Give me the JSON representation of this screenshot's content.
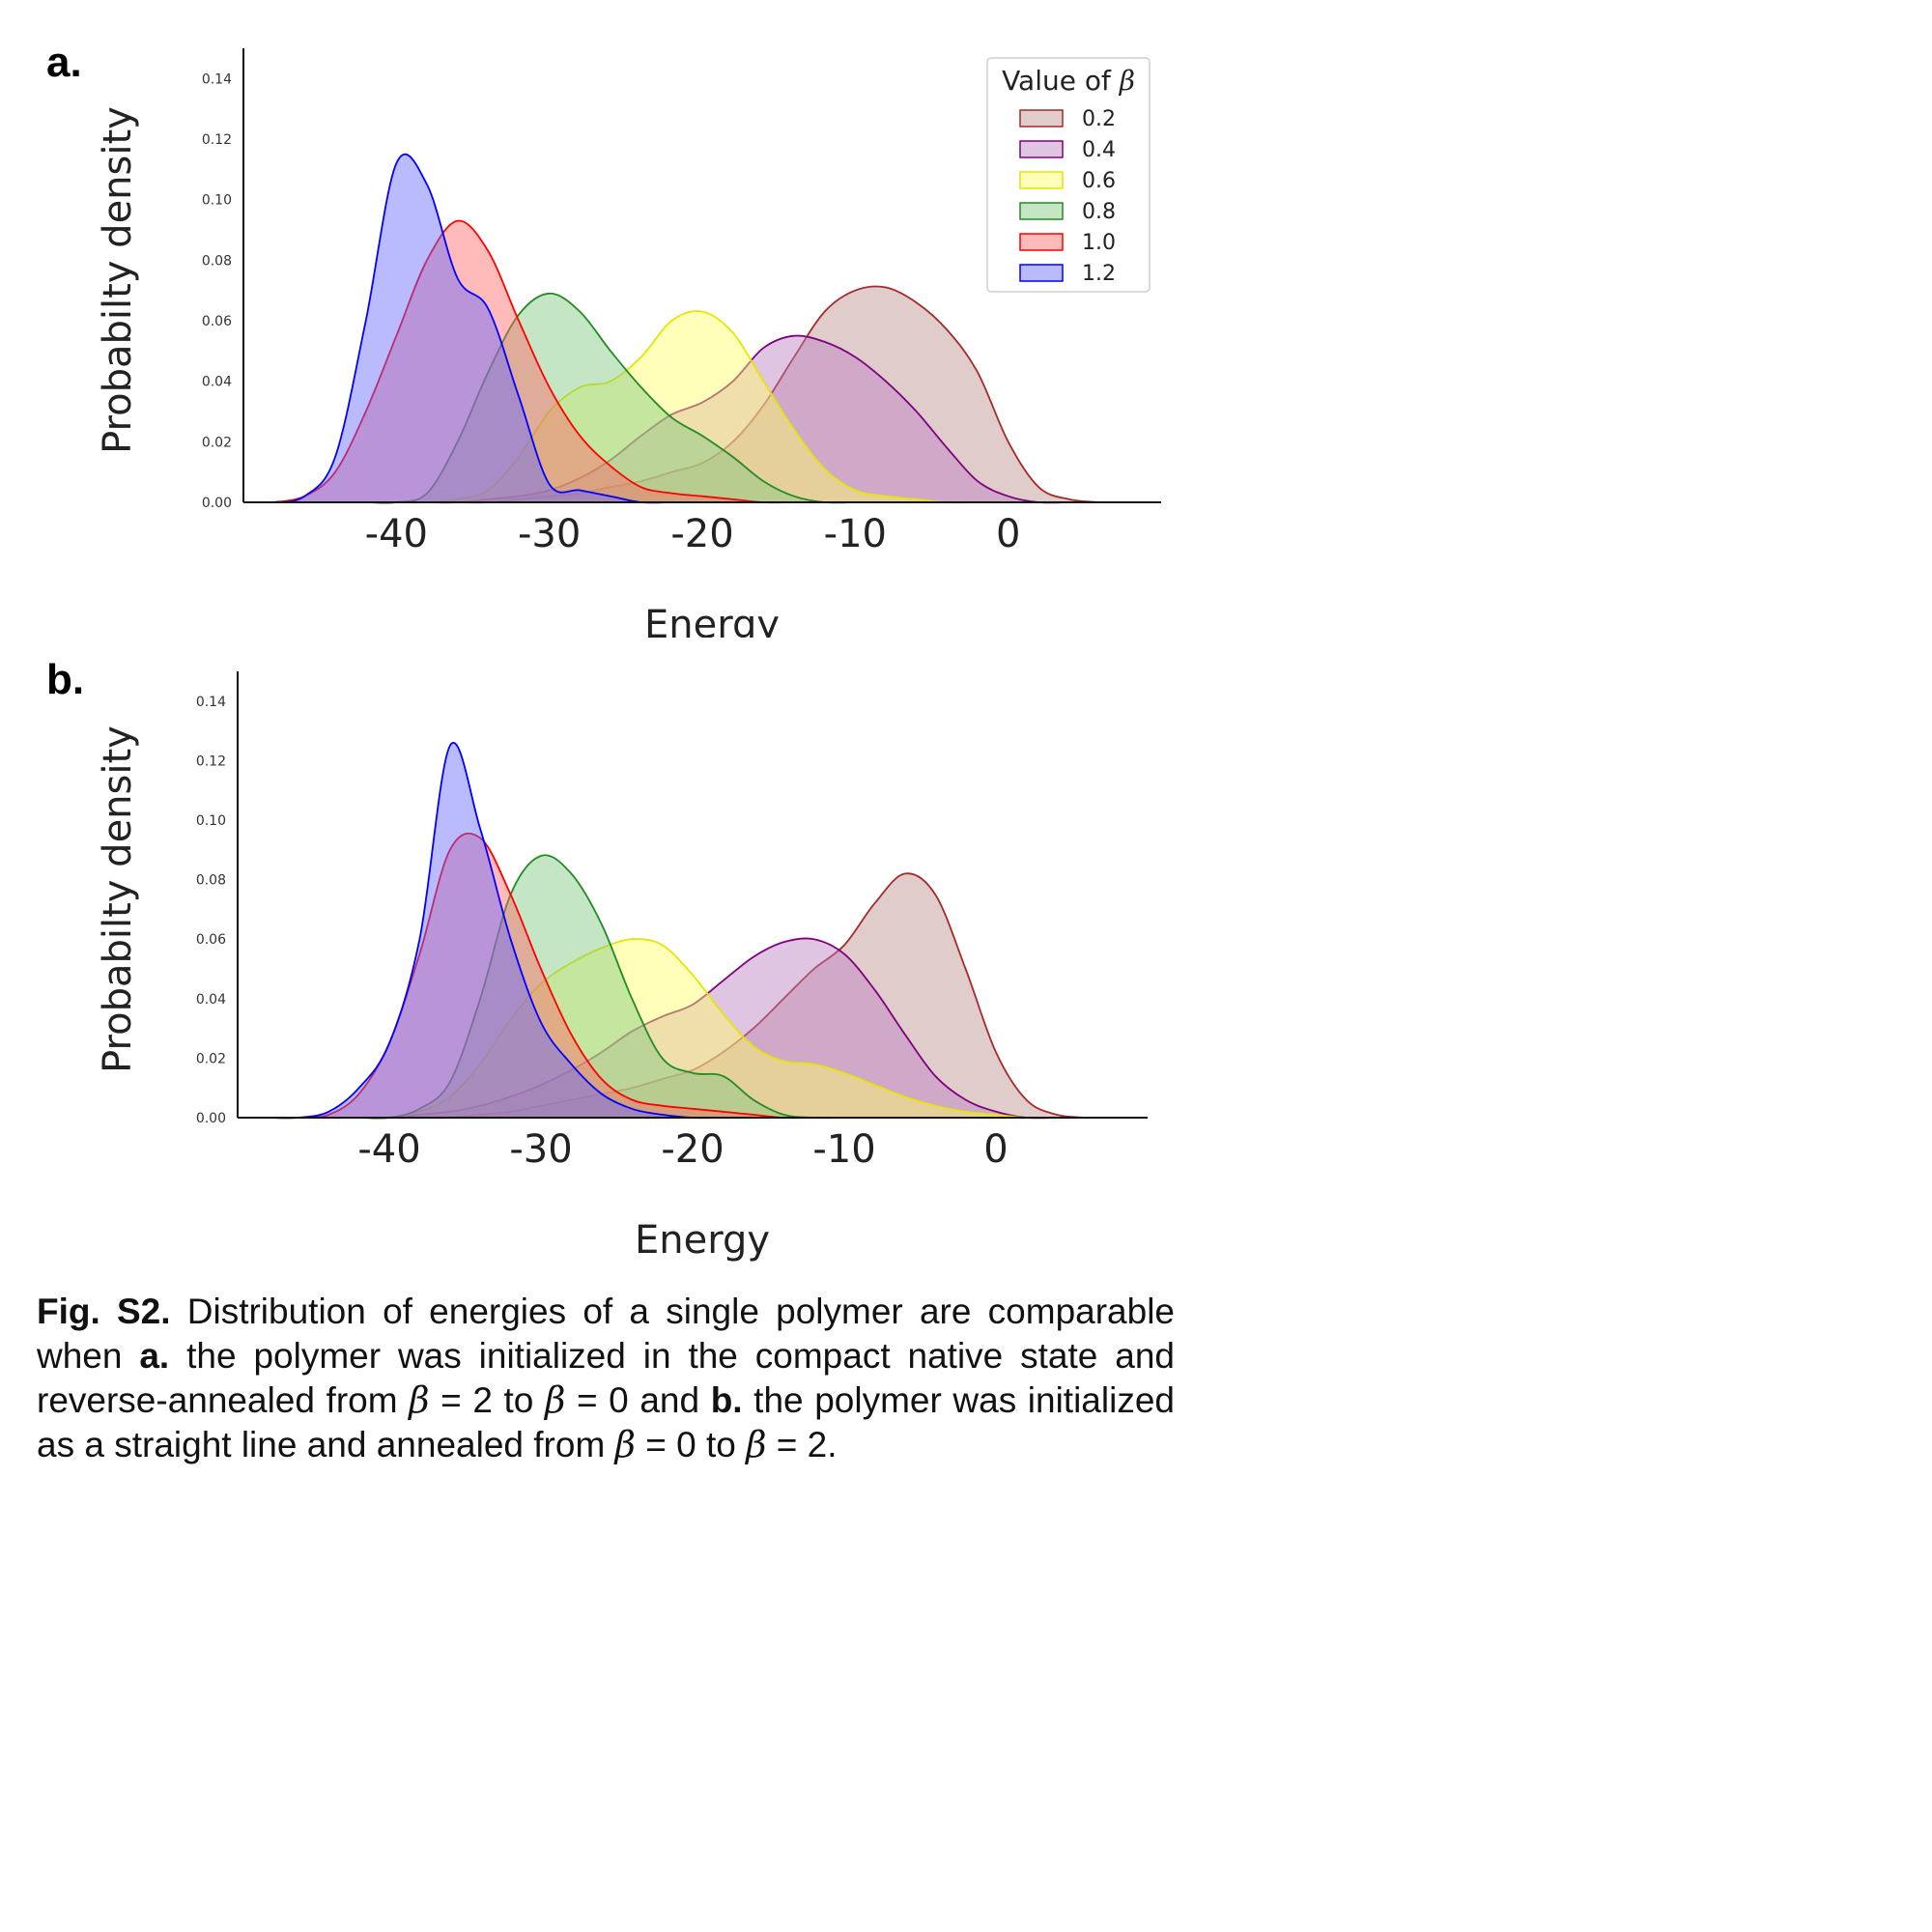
{
  "panels": [
    {
      "letter": "a.",
      "chart_data": {
        "type": "area",
        "xlabel": "Energy",
        "ylabel": "Probabilty density",
        "xlim": [
          -50,
          10
        ],
        "ylim": [
          0,
          0.15
        ],
        "xticks": [
          -40,
          -30,
          -20,
          -10,
          0
        ],
        "yticks": [
          0.0,
          0.02,
          0.04,
          0.06,
          0.08,
          0.1,
          0.12,
          0.14
        ],
        "x": [
          -48,
          -46,
          -44,
          -42,
          -40,
          -38,
          -36,
          -34,
          -32,
          -30,
          -28,
          -26,
          -24,
          -22,
          -20,
          -18,
          -16,
          -14,
          -12,
          -10,
          -8,
          -6,
          -4,
          -2,
          0,
          2,
          4,
          6
        ],
        "series": [
          {
            "name": "0.2",
            "color": "#a52a2a",
            "fill": "#bc8f8f",
            "values": [
              0,
              0,
              0,
              0,
              0,
              0,
              0,
              0,
              0.001,
              0.002,
              0.003,
              0.005,
              0.007,
              0.01,
              0.013,
              0.02,
              0.032,
              0.048,
              0.063,
              0.07,
              0.071,
              0.066,
              0.057,
              0.043,
              0.02,
              0.005,
              0.001,
              0
            ]
          },
          {
            "name": "0.4",
            "color": "#800080",
            "fill": "#ba7fc2",
            "values": [
              0,
              0,
              0,
              0,
              0,
              0,
              0,
              0.001,
              0.002,
              0.004,
              0.008,
              0.014,
              0.022,
              0.029,
              0.033,
              0.04,
              0.051,
              0.055,
              0.053,
              0.048,
              0.04,
              0.03,
              0.018,
              0.007,
              0.002,
              0,
              0,
              0
            ]
          },
          {
            "name": "0.6",
            "color": "#e6e600",
            "fill": "#ffff66",
            "values": [
              0,
              0,
              0,
              0,
              0,
              0,
              0.001,
              0.004,
              0.015,
              0.03,
              0.038,
              0.04,
              0.048,
              0.06,
              0.063,
              0.056,
              0.04,
              0.024,
              0.011,
              0.004,
              0.002,
              0.001,
              0,
              0,
              0,
              0,
              0,
              0
            ]
          },
          {
            "name": "0.8",
            "color": "#228b22",
            "fill": "#7ec87e",
            "values": [
              0,
              0,
              0,
              0,
              0,
              0.003,
              0.02,
              0.043,
              0.062,
              0.069,
              0.063,
              0.05,
              0.038,
              0.028,
              0.022,
              0.015,
              0.007,
              0.002,
              0,
              0,
              0,
              0,
              0,
              0,
              0,
              0,
              0,
              0
            ]
          },
          {
            "name": "1.0",
            "color": "#ff0000",
            "fill": "#ff6666",
            "values": [
              0,
              0.002,
              0.01,
              0.03,
              0.055,
              0.08,
              0.093,
              0.083,
              0.06,
              0.038,
              0.022,
              0.012,
              0.005,
              0.003,
              0.002,
              0.001,
              0,
              0,
              0,
              0,
              0,
              0,
              0,
              0,
              0,
              0,
              0,
              0
            ]
          },
          {
            "name": "1.2",
            "color": "#0000ff",
            "fill": "#6666ff",
            "values": [
              0,
              0.002,
              0.015,
              0.06,
              0.112,
              0.105,
              0.074,
              0.064,
              0.035,
              0.006,
              0.004,
              0.002,
              0,
              0,
              0,
              0,
              0,
              0,
              0,
              0,
              0,
              0,
              0,
              0,
              0,
              0,
              0,
              0
            ]
          }
        ],
        "legend": {
          "title_text": "Value of ",
          "title_symbol": "β",
          "location": "top-right"
        },
        "grid": false
      }
    },
    {
      "letter": "b.",
      "chart_data": {
        "type": "area",
        "xlabel": "Energy",
        "ylabel": "Probabilty density",
        "xlim": [
          -50,
          10
        ],
        "ylim": [
          0,
          0.15
        ],
        "xticks": [
          -40,
          -30,
          -20,
          -10,
          0
        ],
        "yticks": [
          0.0,
          0.02,
          0.04,
          0.06,
          0.08,
          0.1,
          0.12,
          0.14
        ],
        "x": [
          -48,
          -46,
          -44,
          -42,
          -40,
          -38,
          -36,
          -34,
          -32,
          -30,
          -28,
          -26,
          -24,
          -22,
          -20,
          -18,
          -16,
          -14,
          -12,
          -10,
          -8,
          -6,
          -4,
          -2,
          0,
          2,
          4,
          6
        ],
        "series": [
          {
            "name": "0.2",
            "color": "#a52a2a",
            "fill": "#bc8f8f",
            "values": [
              0,
              0,
              0,
              0,
              0,
              0,
              0,
              0.001,
              0.002,
              0.004,
              0.006,
              0.008,
              0.01,
              0.013,
              0.016,
              0.022,
              0.03,
              0.04,
              0.05,
              0.058,
              0.072,
              0.082,
              0.075,
              0.05,
              0.022,
              0.006,
              0.001,
              0
            ]
          },
          {
            "name": "0.4",
            "color": "#800080",
            "fill": "#ba7fc2",
            "values": [
              0,
              0,
              0,
              0,
              0,
              0.001,
              0.002,
              0.004,
              0.007,
              0.011,
              0.016,
              0.022,
              0.029,
              0.034,
              0.038,
              0.046,
              0.054,
              0.059,
              0.06,
              0.055,
              0.043,
              0.028,
              0.014,
              0.006,
              0.002,
              0,
              0,
              0
            ]
          },
          {
            "name": "0.6",
            "color": "#e6e600",
            "fill": "#ffff66",
            "values": [
              0,
              0,
              0,
              0,
              0,
              0.002,
              0.007,
              0.018,
              0.033,
              0.045,
              0.052,
              0.057,
              0.06,
              0.058,
              0.048,
              0.035,
              0.024,
              0.019,
              0.018,
              0.015,
              0.011,
              0.007,
              0.004,
              0.002,
              0.001,
              0,
              0,
              0
            ]
          },
          {
            "name": "0.8",
            "color": "#228b22",
            "fill": "#7ec87e",
            "values": [
              0,
              0,
              0,
              0,
              0,
              0.003,
              0.012,
              0.04,
              0.075,
              0.088,
              0.082,
              0.065,
              0.04,
              0.02,
              0.015,
              0.014,
              0.006,
              0.001,
              0,
              0,
              0,
              0,
              0,
              0,
              0,
              0,
              0,
              0
            ]
          },
          {
            "name": "1.0",
            "color": "#ff0000",
            "fill": "#ff6666",
            "values": [
              0,
              0,
              0.001,
              0.008,
              0.025,
              0.055,
              0.09,
              0.094,
              0.075,
              0.05,
              0.028,
              0.013,
              0.006,
              0.004,
              0.003,
              0.002,
              0.001,
              0,
              0,
              0,
              0,
              0,
              0,
              0,
              0,
              0,
              0,
              0
            ]
          },
          {
            "name": "1.2",
            "color": "#0000ff",
            "fill": "#6666ff",
            "values": [
              0,
              0,
              0.002,
              0.01,
              0.025,
              0.06,
              0.125,
              0.097,
              0.06,
              0.032,
              0.018,
              0.008,
              0.003,
              0.001,
              0,
              0,
              0,
              0,
              0,
              0,
              0,
              0,
              0,
              0,
              0,
              0,
              0,
              0
            ]
          }
        ],
        "grid": false
      }
    }
  ],
  "caption": {
    "lead": "Fig. S2.",
    "t1": " Distribution of energies of a single polymer are comparable when ",
    "a_label": "a.",
    "t2": " the polymer was initialized in the compact native state and reverse-annealed from ",
    "t3": " = 2 to ",
    "t4": " = 0 and ",
    "b_label": "b.",
    "t5": " the polymer was initialized as a straight line and annealed from ",
    "t6": " = 0 to ",
    "t7": " = 2.",
    "beta": "β"
  }
}
